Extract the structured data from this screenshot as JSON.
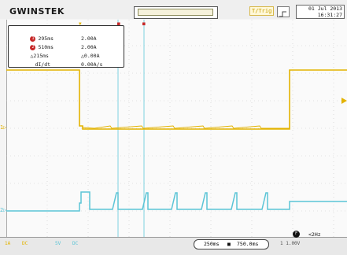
{
  "brand": "GWINSTEK",
  "trigger_badge": "T/Trig",
  "datetime": {
    "date": "01 Jul 2013",
    "time": "16:31:27"
  },
  "cursors": [
    {
      "id": "1",
      "time": "295ms",
      "value": "2.00A"
    },
    {
      "id": "2",
      "time": "510ms",
      "value": "2.00A"
    },
    {
      "label": "△215ms",
      "value": "△0.00A"
    },
    {
      "label": "dI/dt",
      "value": "0.00A/s"
    }
  ],
  "bottom": {
    "ch1": "1A",
    "ch1_extra": "DC",
    "ch2": "5V",
    "ch2_extra": "DC",
    "timebase": "250ms",
    "position": "750.0ms",
    "freq": "<2Hz",
    "freq_badge": "F",
    "trigger_info": "1 1.00V"
  },
  "channel_markers": {
    "ch1": "1▷",
    "ch2": "2▷"
  },
  "colors": {
    "ch1": "#e3b300",
    "ch2": "#5bc4d6",
    "cursor": "#7fd2e0",
    "accent_red": "#c62828"
  },
  "icons": [
    "edge-trigger-icon",
    "memory-bar"
  ]
}
